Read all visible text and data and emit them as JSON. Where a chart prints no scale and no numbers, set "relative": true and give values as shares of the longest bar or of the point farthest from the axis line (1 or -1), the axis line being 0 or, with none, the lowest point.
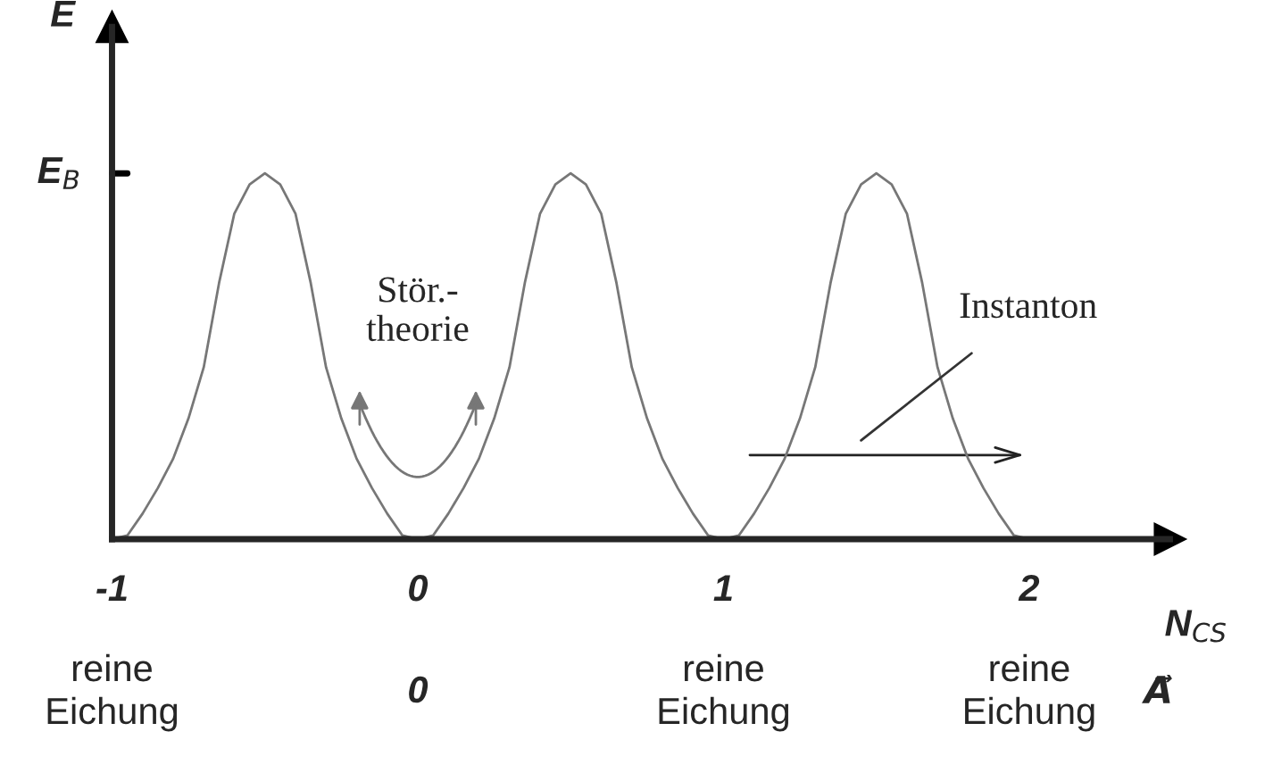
{
  "chart_data": {
    "type": "line",
    "relative": true,
    "xlabel": "N$_{CS}$",
    "ylabel": "E",
    "xlim": [
      -1,
      2.46
    ],
    "xticks": [
      -1,
      0,
      1,
      2
    ],
    "grid": false,
    "legend": false,
    "marker": "none",
    "line_style": "solid",
    "x": [
      -1,
      -0.95,
      -0.9,
      -0.85,
      -0.8,
      -0.75,
      -0.7,
      -0.65,
      -0.6,
      -0.55,
      -0.5,
      -0.45,
      -0.4,
      -0.35,
      -0.3,
      -0.25,
      -0.2,
      -0.15,
      -0.1,
      -0.05,
      0,
      0.05,
      0.1,
      0.15,
      0.2,
      0.25,
      0.3,
      0.35,
      0.4,
      0.45,
      0.5,
      0.55,
      0.6,
      0.65,
      0.7,
      0.75,
      0.8,
      0.85,
      0.9,
      0.95,
      1,
      1.05,
      1.1,
      1.15,
      1.2,
      1.25,
      1.3,
      1.35,
      1.4,
      1.45,
      1.5,
      1.55,
      1.6,
      1.65,
      1.7,
      1.75,
      1.8,
      1.85,
      1.9,
      1.95,
      2
    ],
    "series": [
      {
        "color": "#777777",
        "values": [
          0,
          0.01,
          0.07,
          0.14,
          0.22,
          0.33,
          0.47,
          0.7,
          0.89,
          0.97,
          1,
          0.97,
          0.89,
          0.7,
          0.47,
          0.33,
          0.22,
          0.14,
          0.07,
          0.01,
          0,
          0.01,
          0.07,
          0.14,
          0.22,
          0.33,
          0.47,
          0.7,
          0.89,
          0.97,
          1,
          0.97,
          0.89,
          0.7,
          0.47,
          0.33,
          0.22,
          0.14,
          0.07,
          0.01,
          0,
          0.01,
          0.07,
          0.14,
          0.22,
          0.33,
          0.47,
          0.7,
          0.89,
          0.97,
          1,
          0.97,
          0.89,
          0.7,
          0.47,
          0.33,
          0.22,
          0.14,
          0.07,
          0.01,
          0
        ]
      }
    ],
    "annotations": [
      "E$_{B}$",
      "Stör.-\ntheorie",
      "Instanton",
      "reine\nEichung",
      "0",
      "reine\nEichung",
      "reine\nEichung",
      "A⃗"
    ]
  }
}
